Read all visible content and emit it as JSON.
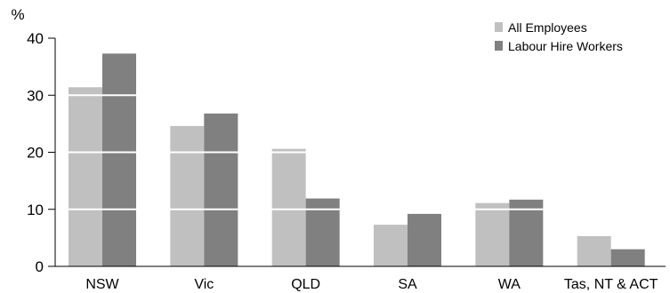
{
  "chart_data": {
    "type": "bar",
    "unit": "%",
    "categories": [
      "NSW",
      "Vic",
      "QLD",
      "SA",
      "WA",
      "Tas, NT & ACT"
    ],
    "series": [
      {
        "name": "All Employees",
        "values": [
          31.4,
          24.6,
          20.6,
          7.3,
          11.1,
          5.3
        ],
        "color": "#c0c0c0"
      },
      {
        "name": "Labour Hire Workers",
        "values": [
          37.3,
          26.8,
          11.9,
          9.2,
          11.7,
          3.0
        ],
        "color": "#808080"
      }
    ],
    "ylim": [
      0,
      40
    ],
    "yticks": [
      0,
      10,
      20,
      30,
      40
    ],
    "grid": "white lines across bars",
    "legend": "top-right"
  }
}
